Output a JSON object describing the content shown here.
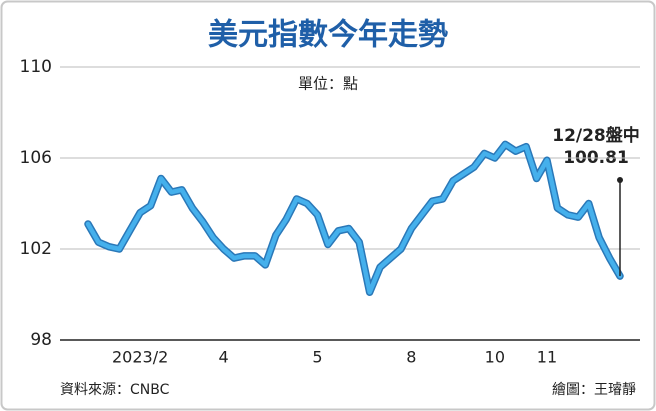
{
  "chart_data": {
    "type": "line",
    "title": "美元指數今年走勢",
    "unit": "單位：點",
    "source": "資料來源：CNBC",
    "credit": "繪圖：王璿靜",
    "annotation": [
      "12/28盤中",
      "100.81"
    ],
    "categories": [
      null,
      null,
      null,
      null,
      null,
      "2023/2",
      null,
      null,
      null,
      null,
      null,
      null,
      null,
      "4",
      null,
      null,
      null,
      null,
      null,
      null,
      null,
      null,
      "5",
      null,
      null,
      null,
      null,
      null,
      null,
      null,
      null,
      "8",
      null,
      null,
      null,
      null,
      null,
      null,
      null,
      "10",
      null,
      null,
      null,
      null,
      "11",
      null,
      null,
      null,
      null,
      null,
      null,
      null
    ],
    "series": [
      {
        "name": "美元指數",
        "color": "#45b0ec",
        "values": [
          103.1,
          102.3,
          102.1,
          102.0,
          102.8,
          103.6,
          103.9,
          105.1,
          104.5,
          104.6,
          103.8,
          103.2,
          102.5,
          102.0,
          101.6,
          101.7,
          101.7,
          101.3,
          102.6,
          103.3,
          104.2,
          104.0,
          103.5,
          102.2,
          102.8,
          102.9,
          102.3,
          100.1,
          101.2,
          101.6,
          102.0,
          102.9,
          103.5,
          104.1,
          104.2,
          105.0,
          105.3,
          105.6,
          106.2,
          106.0,
          106.6,
          106.3,
          106.5,
          105.1,
          105.9,
          103.8,
          103.5,
          103.4,
          104.0,
          102.5,
          101.6,
          100.81
        ]
      }
    ],
    "ylim": [
      98,
      110
    ],
    "yticks": [
      98,
      102,
      106,
      110
    ],
    "grid": true
  }
}
